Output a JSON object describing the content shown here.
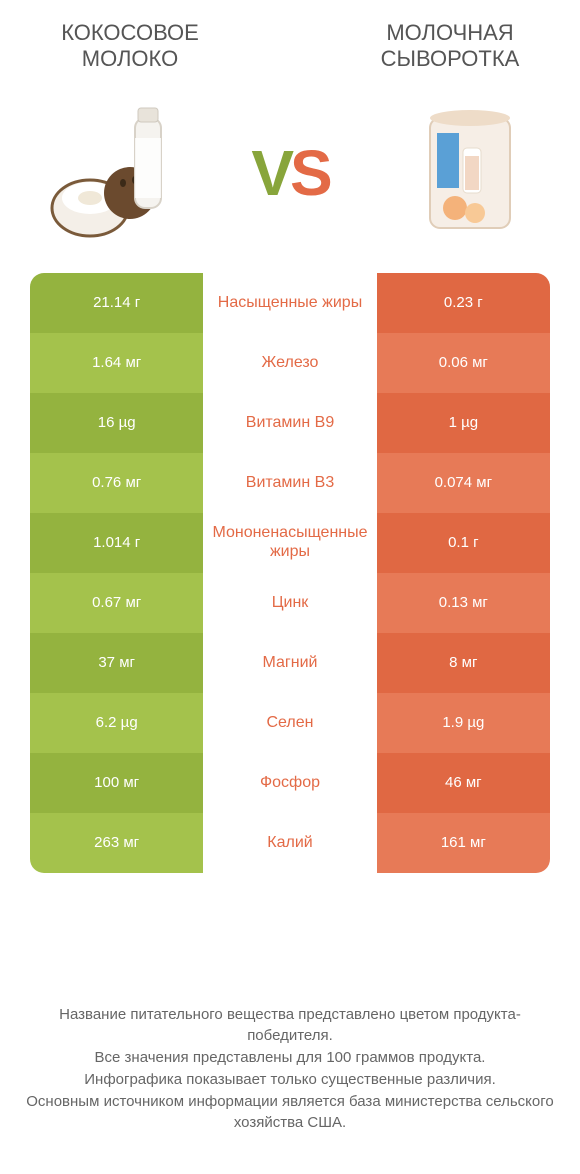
{
  "header": {
    "left_title": "КОКОСОВОЕ МОЛОКО",
    "right_title": "МОЛОЧНАЯ СЫВОРОТКА",
    "vs_v": "V",
    "vs_s": "S"
  },
  "colors": {
    "left_dark": "#94b33f",
    "left_light": "#a4c24c",
    "mid_plain": "#ffffff",
    "right_dark": "#e06843",
    "right_light": "#e77a57",
    "nutrient_text": "#e36a46",
    "value_text_left": "#ffffff",
    "value_text_right": "#ffffff"
  },
  "comparison": {
    "type": "table",
    "rows": [
      {
        "nutrient": "Насыщенные жиры",
        "left": "21.14 г",
        "right": "0.23 г"
      },
      {
        "nutrient": "Железо",
        "left": "1.64 мг",
        "right": "0.06 мг"
      },
      {
        "nutrient": "Витамин B9",
        "left": "16 µg",
        "right": "1 µg"
      },
      {
        "nutrient": "Витамин B3",
        "left": "0.76 мг",
        "right": "0.074 мг"
      },
      {
        "nutrient": "Мононенасыщенные жиры",
        "left": "1.014 г",
        "right": "0.1 г"
      },
      {
        "nutrient": "Цинк",
        "left": "0.67 мг",
        "right": "0.13 мг"
      },
      {
        "nutrient": "Магний",
        "left": "37 мг",
        "right": "8 мг"
      },
      {
        "nutrient": "Селен",
        "left": "6.2 µg",
        "right": "1.9 µg"
      },
      {
        "nutrient": "Фосфор",
        "left": "100 мг",
        "right": "46 мг"
      },
      {
        "nutrient": "Калий",
        "left": "263 мг",
        "right": "161 мг"
      }
    ]
  },
  "footer": {
    "line1": "Название питательного вещества представлено цветом продукта-победителя.",
    "line2": "Все значения представлены для 100 граммов продукта.",
    "line3": "Инфографика показывает только существенные различия.",
    "line4": "Основным источником информации является база министерства сельского хозяйства США."
  }
}
